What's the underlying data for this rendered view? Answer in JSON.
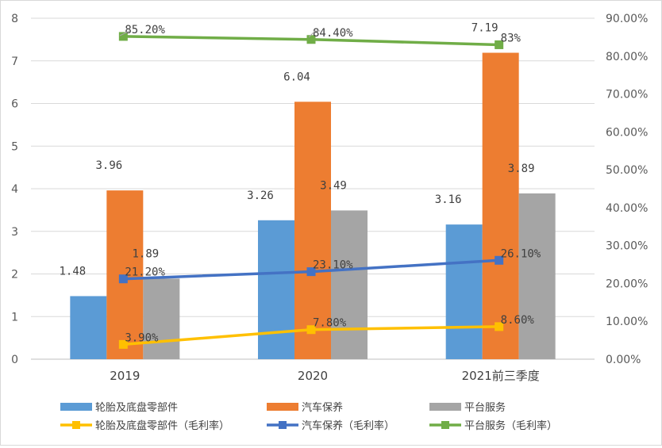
{
  "chart_data": {
    "type": "bar+line",
    "categories": [
      "2019",
      "2020",
      "2021前三季度"
    ],
    "left_axis": {
      "min": 0,
      "max": 8,
      "step": 1,
      "ticks": [
        "0",
        "1",
        "2",
        "3",
        "4",
        "5",
        "6",
        "7",
        "8"
      ]
    },
    "right_axis": {
      "min": 0,
      "max": 0.9,
      "step": 0.1,
      "ticks": [
        "0.00%",
        "10.00%",
        "20.00%",
        "30.00%",
        "40.00%",
        "50.00%",
        "60.00%",
        "70.00%",
        "80.00%",
        "90.00%"
      ]
    },
    "bar_series": [
      {
        "name": "轮胎及底盘零部件",
        "color": "#5B9BD5",
        "values": [
          1.48,
          3.26,
          3.16
        ],
        "labels": [
          "1.48",
          "3.26",
          "3.16"
        ]
      },
      {
        "name": "汽车保养",
        "color": "#ED7D31",
        "values": [
          3.96,
          6.04,
          7.19
        ],
        "labels": [
          "3.96",
          "6.04",
          "7.19"
        ]
      },
      {
        "name": "平台服务",
        "color": "#A5A5A5",
        "values": [
          1.89,
          3.49,
          3.89
        ],
        "labels": [
          "1.89",
          "3.49",
          "3.89"
        ]
      }
    ],
    "line_series": [
      {
        "name": "轮胎及底盘零部件（毛利率）",
        "color": "#FFC000",
        "values": [
          0.039,
          0.078,
          0.086
        ],
        "labels": [
          "3.90%",
          "7.80%",
          "8.60%"
        ]
      },
      {
        "name": "汽车保养（毛利率）",
        "color": "#4472C4",
        "values": [
          0.212,
          0.231,
          0.261
        ],
        "labels": [
          "21.20%",
          "23.10%",
          "26.10%"
        ]
      },
      {
        "name": "平台服务（毛利率）",
        "color": "#70AD47",
        "values": [
          0.852,
          0.844,
          0.83
        ],
        "labels": [
          "85.20%",
          "84.40%",
          "83%"
        ]
      }
    ],
    "legend_position": "bottom"
  }
}
